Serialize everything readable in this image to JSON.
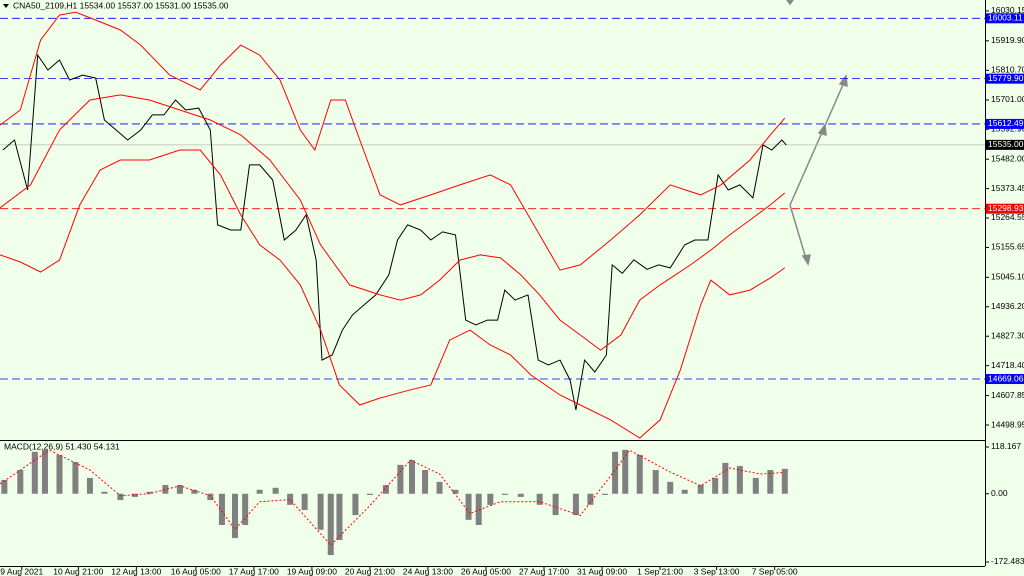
{
  "chart_data": [
    {
      "type": "line",
      "title": "CNA50_2109,H1  15534.00 15537.00 15531.00 15535.00",
      "xlim": [
        0,
        679
      ],
      "ylim": [
        14443.5,
        16070.8
      ],
      "yticks": [
        16030.15,
        {
          "value": 15919.9,
          "label": "15919.90"
        },
        {
          "value": 15810.7,
          "label": "15810.70"
        },
        {
          "value": 15701,
          "label": "15701.00"
        },
        {
          "value": 15592.9,
          "label": "15592.90"
        },
        {
          "value": 15482,
          "label": "15482.00"
        },
        15373.45,
        15264.55,
        15155.65,
        {
          "value": 15045.1,
          "label": "15045.10"
        },
        {
          "value": 14936.2,
          "label": "14936.20"
        },
        {
          "value": 14827.3,
          "label": "14827.30"
        },
        {
          "value": 14718.4,
          "label": "14718.40"
        },
        14607.85,
        14498.95
      ],
      "levels": [
        {
          "value": 16003.11,
          "color": "#0000ff"
        },
        {
          "value": 15779.9,
          "label": "15779.90",
          "color": "#0000ff"
        },
        {
          "value": 15612.49,
          "color": "#0000ff"
        },
        {
          "value": 15298.93,
          "color": "#ff0000"
        },
        {
          "value": 14669.06,
          "color": "#0000ff"
        }
      ],
      "current_price": {
        "value": 15535,
        "label": "15535.00",
        "color": "#000000"
      },
      "series": [
        {
          "color": "#000000",
          "x": [
            2,
            10,
            19,
            26,
            33,
            41,
            48,
            57,
            66,
            72,
            80,
            88,
            97,
            105,
            113,
            121,
            128,
            137,
            145,
            150,
            159,
            166,
            172,
            179,
            188,
            196,
            204,
            211,
            218,
            222,
            229,
            236,
            243,
            251,
            259,
            268,
            274,
            281,
            290,
            297,
            305,
            314,
            321,
            328,
            336,
            343,
            348,
            355,
            364,
            371,
            378,
            386,
            393,
            397,
            403,
            410,
            418,
            422,
            429,
            437,
            446,
            454,
            462,
            472,
            479,
            488,
            495,
            502,
            510,
            519,
            526,
            532,
            539,
            542
          ],
          "values": [
            15516,
            15553,
            15368,
            15867,
            15812,
            15849,
            15775,
            15793,
            15782,
            15627,
            15590,
            15553,
            15590,
            15646,
            15646,
            15701,
            15664,
            15671,
            15590,
            15239,
            15220,
            15220,
            15461,
            15461,
            15405,
            15183,
            15220,
            15276,
            15109,
            14739,
            14758,
            14850,
            14906,
            14943,
            14980,
            15054,
            15183,
            15239,
            15220,
            15183,
            15213,
            15202,
            14887,
            14869,
            14887,
            14887,
            14998,
            14961,
            14980,
            14739,
            14721,
            14739,
            14665,
            14555,
            14739,
            14695,
            14758,
            15091,
            15060,
            15110,
            15075,
            15091,
            15080,
            15165,
            15183,
            15183,
            15424,
            15368,
            15387,
            15339,
            15535,
            15516,
            15553,
            15535
          ]
        },
        {
          "color": "#ff0000",
          "x": [
            0,
            14,
            28,
            41,
            52,
            66,
            83,
            97,
            117,
            138,
            152,
            166,
            179,
            193,
            207,
            217,
            228,
            238,
            248,
            262,
            276,
            297,
            317,
            338,
            352,
            372,
            386,
            400,
            421,
            441,
            462,
            483,
            497,
            517,
            531,
            541
          ],
          "values": [
            15608,
            15664,
            15923,
            16015,
            16026,
            15997,
            15960,
            15904,
            15793,
            15738,
            15830,
            15904,
            15867,
            15775,
            15590,
            15516,
            15701,
            15701,
            15553,
            15350,
            15313,
            15350,
            15387,
            15424,
            15387,
            15202,
            15072,
            15091,
            15183,
            15276,
            15387,
            15350,
            15387,
            15479,
            15572,
            15634
          ]
        },
        {
          "color": "#ff0000",
          "x": [
            0,
            21,
            41,
            62,
            83,
            103,
            124,
            145,
            166,
            186,
            207,
            221,
            241,
            262,
            276,
            290,
            303,
            317,
            331,
            345,
            359,
            372,
            386,
            400,
            414,
            428,
            441,
            455,
            476,
            490,
            503,
            517,
            531,
            541
          ],
          "values": [
            15302,
            15387,
            15590,
            15701,
            15720,
            15701,
            15664,
            15627,
            15572,
            15479,
            15331,
            15165,
            15017,
            14980,
            14961,
            14980,
            15035,
            15109,
            15128,
            15117,
            15054,
            14980,
            14887,
            14832,
            14776,
            14832,
            14961,
            15017,
            15091,
            15146,
            15202,
            15257,
            15313,
            15357
          ]
        },
        {
          "color": "#ff0000",
          "x": [
            0,
            14,
            28,
            41,
            55,
            69,
            83,
            103,
            124,
            138,
            152,
            166,
            179,
            193,
            207,
            221,
            234,
            248,
            262,
            283,
            297,
            310,
            324,
            338,
            352,
            366,
            386,
            400,
            421,
            441,
            455,
            469,
            483,
            490,
            503,
            517,
            531,
            541
          ],
          "values": [
            15128,
            15102,
            15065,
            15109,
            15313,
            15442,
            15479,
            15479,
            15516,
            15516,
            15424,
            15276,
            15165,
            15109,
            15017,
            14850,
            14647,
            14573,
            14599,
            14629,
            14647,
            14813,
            14850,
            14795,
            14758,
            14684,
            14610,
            14573,
            14518,
            14451,
            14518,
            14703,
            14943,
            15035,
            14980,
            14998,
            15043,
            15080
          ]
        }
      ]
    },
    {
      "type": "bar",
      "title": "MACD(12,26,9) 51.430 54.131",
      "xlim": [
        0,
        679
      ],
      "ylim": [
        -207.9,
        133.3
      ],
      "yticks": [
        118.167,
        {
          "value": 0,
          "label": "0.00"
        },
        -172.483
      ],
      "xticks": [
        {
          "value": 15,
          "label": "9 Aug 2021"
        },
        {
          "value": 54,
          "label": "10 Aug 21:00"
        },
        {
          "value": 94,
          "label": "12 Aug 13:00"
        },
        {
          "value": 135,
          "label": "16 Aug 05:00"
        },
        {
          "value": 175,
          "label": "17 Aug 17:00"
        },
        {
          "value": 215,
          "label": "19 Aug 09:00"
        },
        {
          "value": 255,
          "label": "20 Aug 21:00"
        },
        {
          "value": 295,
          "label": "24 Aug 13:00"
        },
        {
          "value": 335,
          "label": "26 Aug 05:00"
        },
        {
          "value": 375,
          "label": "27 Aug 17:00"
        },
        {
          "value": 415,
          "label": "31 Aug 09:00"
        },
        {
          "value": 455,
          "label": "1 Sep 21:00"
        },
        {
          "value": 494,
          "label": "3 Sep 13:00"
        },
        {
          "value": 534,
          "label": "7 Sep 05:00"
        }
      ],
      "series": [
        {
          "color": "#808080",
          "x": [
            3,
            14,
            24,
            31,
            41,
            52,
            62,
            72,
            83,
            93,
            103,
            114,
            124,
            134,
            145,
            153,
            162,
            169,
            179,
            190,
            200,
            210,
            221,
            228,
            234,
            245,
            255,
            266,
            276,
            284,
            293,
            303,
            314,
            323,
            330,
            338,
            348,
            359,
            372,
            383,
            397,
            407,
            417,
            424,
            431,
            441,
            452,
            462,
            472,
            483,
            493,
            500,
            510,
            521,
            531,
            541
          ],
          "values": [
            35,
            60,
            106,
            111,
            98,
            80,
            40,
            5,
            -16,
            -8,
            5,
            22,
            22,
            10,
            -16,
            -79,
            -112,
            -79,
            10,
            15,
            -28,
            -41,
            -91,
            -155,
            -117,
            -54,
            -3,
            22,
            73,
            85,
            60,
            30,
            10,
            -66,
            -79,
            -28,
            -3,
            -8,
            -28,
            -54,
            -54,
            -28,
            -3,
            106,
            111,
            98,
            60,
            30,
            10,
            22,
            40,
            78,
            70,
            40,
            60,
            63
          ]
        },
        {
          "type": "line",
          "color": "#ff0000",
          "x": [
            0,
            34,
            62,
            83,
            103,
            124,
            145,
            162,
            179,
            200,
            228,
            255,
            283,
            303,
            324,
            345,
            372,
            400,
            424,
            434,
            462,
            483,
            503,
            524,
            541
          ],
          "values": [
            25,
            110,
            60,
            -5,
            0,
            20,
            -5,
            -90,
            -20,
            -15,
            -130,
            -30,
            85,
            50,
            -50,
            -20,
            -20,
            -55,
            60,
            110,
            55,
            20,
            65,
            50,
            54
          ]
        }
      ]
    }
  ]
}
